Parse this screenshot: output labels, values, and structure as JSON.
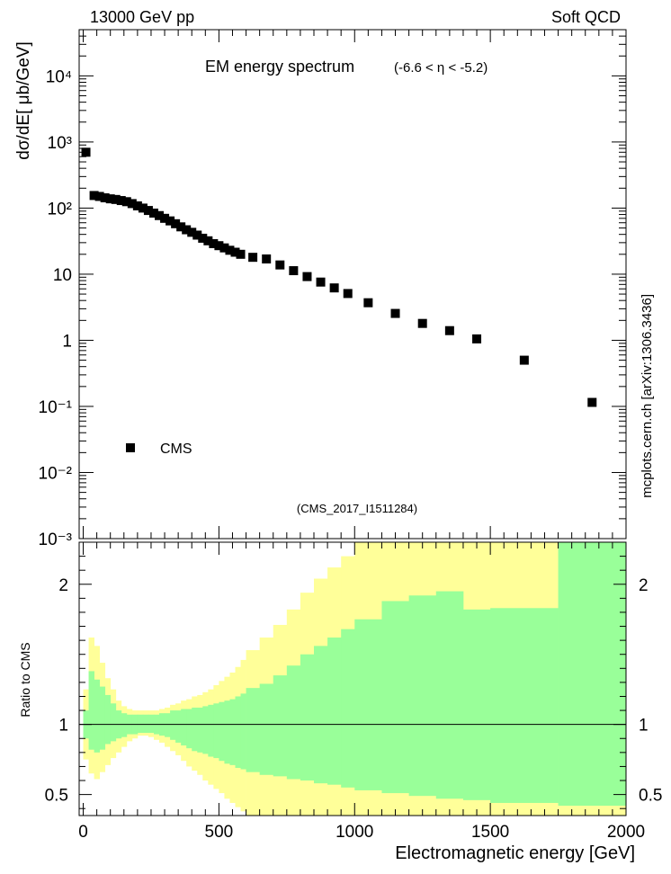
{
  "header": {
    "left": "13000 GeV pp",
    "right": "Soft QCD"
  },
  "side_label": "mcplots.cern.ch [arXiv:1306.3436]",
  "colors": {
    "data_marker": "#000000",
    "band_inner": "#99ff99",
    "band_outer": "#ffff99",
    "ref_line": "#000000",
    "analysis_text": "#999999",
    "side_label": "#888888"
  },
  "chart_data": [
    {
      "type": "scatter",
      "title": "EM energy spectrum",
      "title_sub": "(-6.6 < η < -5.2)",
      "analysis_tag": "(CMS_2017_I1511284)",
      "ylabel": "dσ/dE[ μb/GeV]",
      "xlabel": "",
      "yscale": "log",
      "ylim": [
        0.001,
        50000
      ],
      "xlim": [
        -15,
        2000
      ],
      "y_tick_labels": [
        "10⁻³",
        "10⁻²",
        "10⁻¹",
        "1",
        "10",
        "10²",
        "10³",
        "10⁴"
      ],
      "legend": {
        "position": "lower-left",
        "entries": [
          "CMS"
        ]
      },
      "series": [
        {
          "name": "CMS",
          "x": [
            10,
            40,
            60,
            80,
            100,
            120,
            140,
            160,
            180,
            200,
            220,
            240,
            260,
            280,
            300,
            320,
            340,
            360,
            380,
            400,
            420,
            440,
            460,
            480,
            500,
            520,
            540,
            560,
            580,
            625,
            675,
            725,
            775,
            825,
            875,
            925,
            975,
            1050,
            1150,
            1250,
            1350,
            1450,
            1625,
            1875
          ],
          "y": [
            700,
            155,
            150,
            143,
            138,
            135,
            130,
            125,
            117,
            108,
            100,
            92,
            84,
            77,
            70,
            64,
            58,
            52,
            47,
            43,
            39,
            35,
            32,
            29,
            27,
            25,
            23,
            21.5,
            20,
            18,
            17,
            13.8,
            11.3,
            9.2,
            7.6,
            6.2,
            5.1,
            3.7,
            2.55,
            1.8,
            1.4,
            1.05,
            0.5,
            0.115
          ]
        }
      ]
    },
    {
      "type": "area",
      "ylabel": "Ratio to CMS",
      "xlabel": "Electromagnetic energy [GeV]",
      "ylim": [
        0.35,
        2.3
      ],
      "xlim": [
        -15,
        2000
      ],
      "x_ticks": [
        0,
        500,
        1000,
        1500,
        2000
      ],
      "y_ticks": [
        0.5,
        1,
        2
      ],
      "reference_line": 1,
      "bands": {
        "edges": [
          0,
          20,
          40,
          60,
          80,
          100,
          120,
          140,
          160,
          180,
          200,
          220,
          240,
          260,
          280,
          300,
          320,
          340,
          360,
          380,
          400,
          420,
          440,
          460,
          480,
          500,
          520,
          540,
          560,
          580,
          600,
          650,
          700,
          750,
          800,
          850,
          900,
          950,
          1000,
          1100,
          1200,
          1300,
          1400,
          1500,
          1750,
          2000
        ],
        "inner_upper": [
          1.1,
          1.38,
          1.32,
          1.27,
          1.21,
          1.15,
          1.1,
          1.08,
          1.07,
          1.07,
          1.07,
          1.07,
          1.07,
          1.07,
          1.08,
          1.08,
          1.1,
          1.1,
          1.11,
          1.11,
          1.12,
          1.12,
          1.13,
          1.14,
          1.15,
          1.16,
          1.17,
          1.18,
          1.2,
          1.22,
          1.26,
          1.29,
          1.35,
          1.42,
          1.5,
          1.56,
          1.62,
          1.68,
          1.75,
          1.88,
          1.92,
          1.95,
          1.82,
          1.83,
          2.4
        ],
        "inner_lower": [
          0.9,
          0.82,
          0.8,
          0.82,
          0.86,
          0.88,
          0.9,
          0.91,
          0.93,
          0.93,
          0.94,
          0.94,
          0.94,
          0.93,
          0.92,
          0.91,
          0.89,
          0.87,
          0.85,
          0.83,
          0.81,
          0.8,
          0.79,
          0.77,
          0.76,
          0.74,
          0.72,
          0.71,
          0.69,
          0.68,
          0.66,
          0.64,
          0.63,
          0.61,
          0.6,
          0.58,
          0.57,
          0.55,
          0.53,
          0.51,
          0.49,
          0.47,
          0.46,
          0.44,
          0.42
        ],
        "outer_upper": [
          1.25,
          1.62,
          1.56,
          1.44,
          1.33,
          1.25,
          1.17,
          1.13,
          1.11,
          1.1,
          1.1,
          1.1,
          1.1,
          1.1,
          1.11,
          1.12,
          1.14,
          1.15,
          1.17,
          1.18,
          1.2,
          1.21,
          1.23,
          1.25,
          1.28,
          1.31,
          1.34,
          1.37,
          1.41,
          1.46,
          1.53,
          1.62,
          1.71,
          1.82,
          1.94,
          2.04,
          2.12,
          2.2,
          2.4,
          2.4,
          2.4,
          2.4,
          2.4,
          2.4,
          2.4
        ],
        "outer_lower": [
          0.75,
          0.65,
          0.61,
          0.66,
          0.71,
          0.76,
          0.8,
          0.84,
          0.88,
          0.9,
          0.92,
          0.92,
          0.91,
          0.89,
          0.87,
          0.84,
          0.81,
          0.78,
          0.74,
          0.7,
          0.67,
          0.64,
          0.6,
          0.57,
          0.54,
          0.51,
          0.47,
          0.44,
          0.41,
          0.38,
          0.35,
          0.35,
          0.35,
          0.35,
          0.35,
          0.35,
          0.35,
          0.35,
          0.35,
          0.35,
          0.35,
          0.35,
          0.35,
          0.35,
          0.35
        ]
      }
    }
  ]
}
